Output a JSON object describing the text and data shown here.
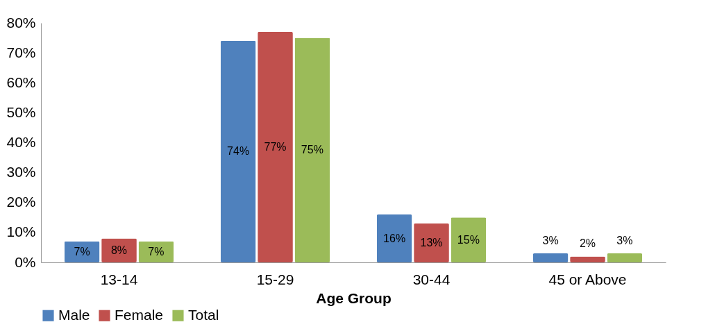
{
  "chart_data": {
    "type": "bar",
    "xlabel": "Age Group",
    "categories": [
      "13-14",
      "15-29",
      "30-44",
      "45 or Above"
    ],
    "series": [
      {
        "name": "Male",
        "color": "#4f81bd",
        "values": [
          7,
          74,
          16,
          3
        ],
        "value_labels": [
          "7%",
          "74%",
          "16%",
          "3%"
        ]
      },
      {
        "name": "Female",
        "color": "#c0504d",
        "values": [
          8,
          77,
          13,
          2
        ],
        "value_labels": [
          "8%",
          "77%",
          "13%",
          "2%"
        ]
      },
      {
        "name": "Total",
        "color": "#9bbb59",
        "values": [
          7,
          75,
          15,
          3
        ],
        "value_labels": [
          "7%",
          "75%",
          "15%",
          "3%"
        ]
      }
    ],
    "ylim": [
      0,
      80
    ],
    "yticks": [
      {
        "value": 0,
        "label": "0%"
      },
      {
        "value": 10,
        "label": "10%"
      },
      {
        "value": 20,
        "label": "20%"
      },
      {
        "value": 30,
        "label": "30%"
      },
      {
        "value": 40,
        "label": "40%"
      },
      {
        "value": 50,
        "label": "50%"
      },
      {
        "value": 60,
        "label": "60%"
      },
      {
        "value": 70,
        "label": "70%"
      },
      {
        "value": 80,
        "label": "80%"
      }
    ],
    "grid": false,
    "legend": "bottom"
  }
}
